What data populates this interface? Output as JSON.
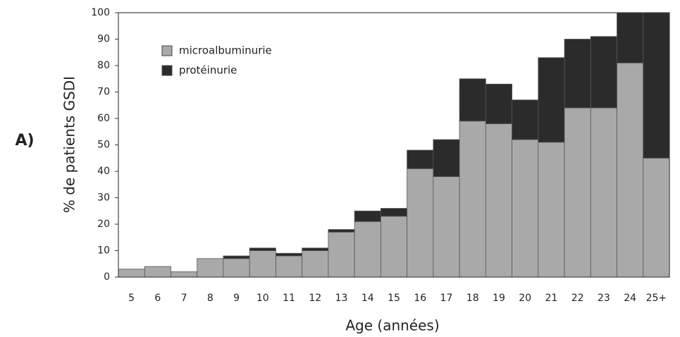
{
  "chart_data": {
    "type": "stacked_bar",
    "panel_label": "A)",
    "x_label": "Age (années)",
    "y_label": "% de patients GSDI",
    "categories": [
      "5",
      "6",
      "7",
      "8",
      "9",
      "10",
      "11",
      "12",
      "13",
      "14",
      "15",
      "16",
      "17",
      "18",
      "19",
      "20",
      "21",
      "22",
      "23",
      "24",
      "25+"
    ],
    "series": [
      {
        "name": "microalbuminurie",
        "color": "#a9a9a9",
        "values": [
          3,
          4,
          2,
          7,
          7,
          10,
          8,
          10,
          17,
          21,
          23,
          41,
          38,
          59,
          58,
          52,
          51,
          64,
          64,
          81,
          45
        ]
      },
      {
        "name": "protéinurie",
        "color": "#2b2b2b",
        "values": [
          0,
          0,
          0,
          0,
          1,
          1,
          1,
          1,
          1,
          4,
          3,
          7,
          14,
          16,
          15,
          15,
          32,
          26,
          27,
          19,
          55
        ]
      }
    ],
    "ylim": [
      0,
      100
    ],
    "yticks": [
      0,
      10,
      20,
      30,
      40,
      50,
      60,
      70,
      80,
      90,
      100
    ],
    "legend": "upper left"
  }
}
